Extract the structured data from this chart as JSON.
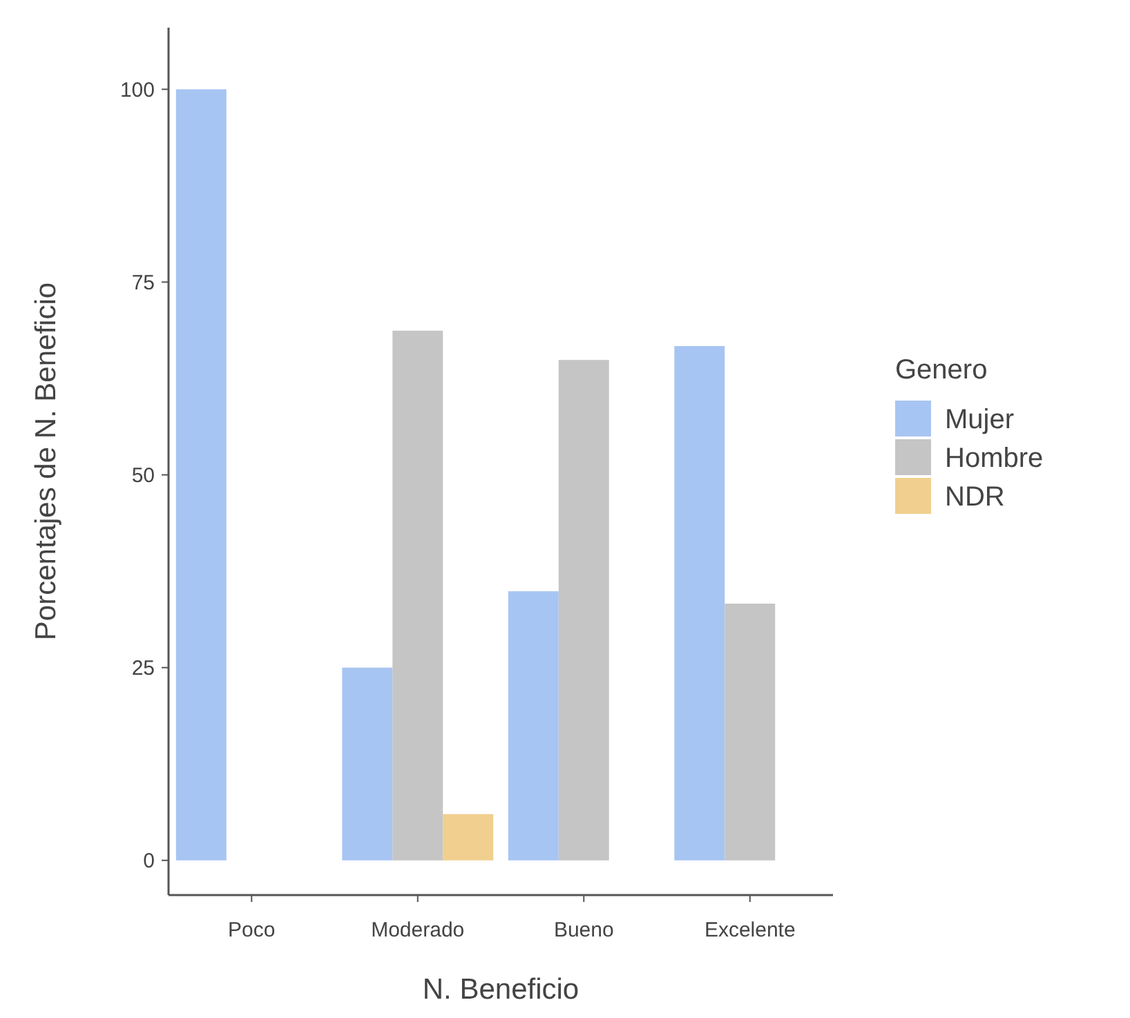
{
  "chart_data": {
    "type": "bar",
    "xlabel": "N. Beneficio",
    "ylabel": "Porcentajes de N. Beneficio",
    "legend_title": "Genero",
    "categories": [
      "Poco",
      "Moderado",
      "Bueno",
      "Excelente"
    ],
    "series": [
      {
        "name": "Mujer",
        "color": "#a7c5f2",
        "values": [
          100,
          25,
          34.9,
          66.7
        ]
      },
      {
        "name": "Hombre",
        "color": "#c5c5c5",
        "values": [
          0,
          68.7,
          64.9,
          33.3
        ]
      },
      {
        "name": "NDR",
        "color": "#f0cf8f",
        "values": [
          0,
          6,
          0,
          0
        ]
      }
    ],
    "ylim": [
      -4.5,
      108
    ],
    "yticks": [
      0,
      25,
      50,
      75,
      100
    ],
    "grid": false,
    "legend": "right"
  }
}
